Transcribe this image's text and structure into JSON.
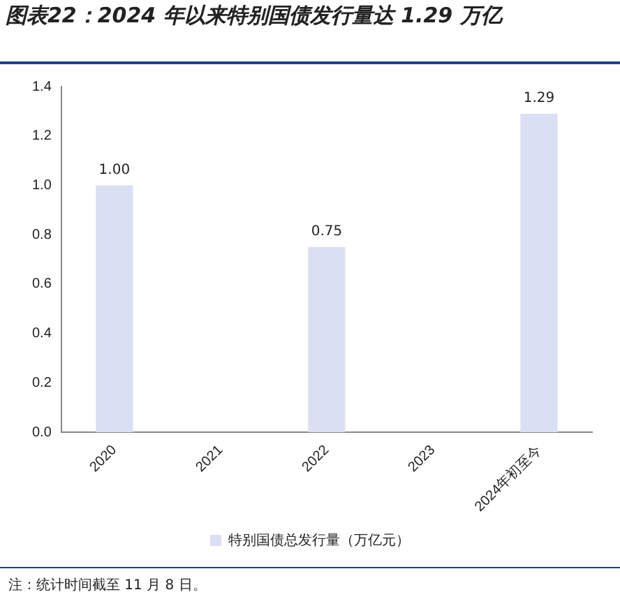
{
  "chart_data": {
    "type": "bar",
    "title": "图表22：2024 年以来特别国债发行量达 1.29 万亿",
    "categories": [
      "2020",
      "2021",
      "2022",
      "2023",
      "2024年初至今"
    ],
    "series": [
      {
        "name": "特别国债总发行量（万亿元）",
        "color": "#dadff4",
        "values": [
          1.0,
          null,
          0.75,
          null,
          1.29
        ],
        "value_labels": [
          "1.00",
          null,
          "0.75",
          null,
          "1.29"
        ]
      }
    ],
    "ylim": [
      0,
      1.4
    ],
    "yticks": [
      {
        "value": 0,
        "label": "0.0"
      },
      {
        "value": 0.2,
        "label": "0.2"
      },
      {
        "value": 0.4,
        "label": "0.4"
      },
      {
        "value": 0.6,
        "label": "0.6"
      },
      {
        "value": 0.8,
        "label": "0.8"
      },
      {
        "value": 1.0,
        "label": "1.0"
      },
      {
        "value": 1.2,
        "label": "1.2"
      },
      {
        "value": 1.4,
        "label": "1.4"
      }
    ],
    "grid": false,
    "legend": "bottom",
    "annotations": [
      "注：统计时间截至 11 月 8 日。"
    ]
  }
}
